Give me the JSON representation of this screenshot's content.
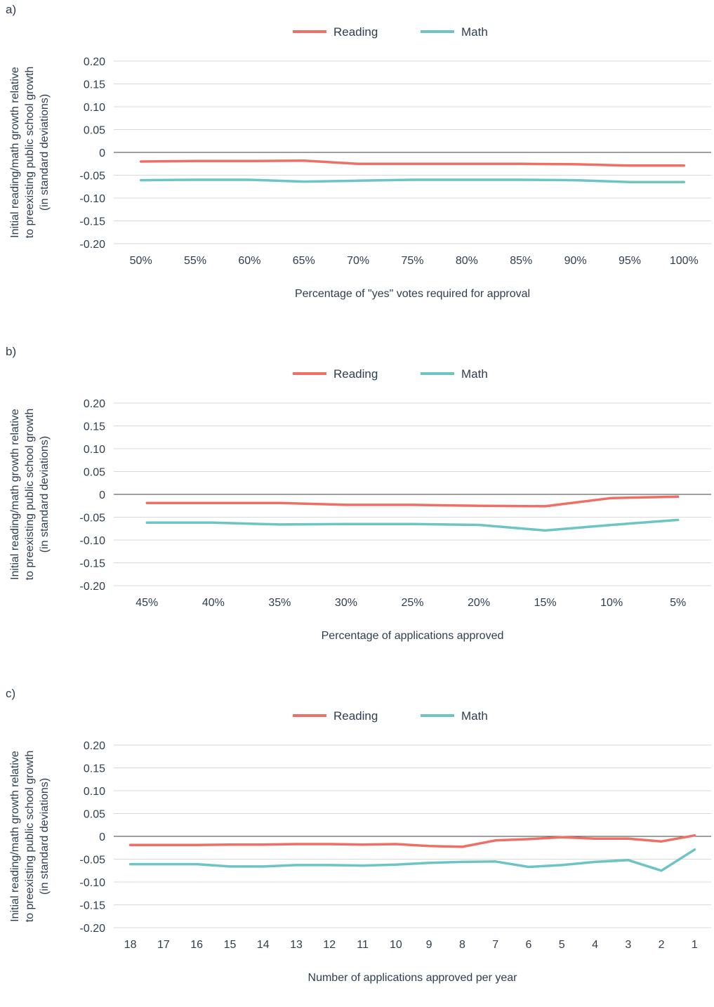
{
  "colors": {
    "reading": "#ef6f66",
    "math": "#6cc4c4",
    "grid": "#d9d9d9",
    "zero": "#404040",
    "text": "#2e3d50"
  },
  "ylabel_lines": [
    "Initial reading/math growth relative",
    "to preexisting public school growth",
    "(in standard deviations)"
  ],
  "yticks": [
    "0.20",
    "0.15",
    "0.10",
    "0.05",
    "0",
    "-0.05",
    "-0.10",
    "-0.15",
    "-0.20"
  ],
  "chart_data": [
    {
      "panel": "a)",
      "type": "line",
      "xlabel": "Percentage of \"yes\" votes required for approval",
      "categories": [
        "50%",
        "55%",
        "60%",
        "65%",
        "70%",
        "75%",
        "80%",
        "85%",
        "90%",
        "95%",
        "100%"
      ],
      "ylim": [
        -0.2,
        0.2
      ],
      "grid": true,
      "legend": "top-center",
      "series": [
        {
          "name": "Reading",
          "values": [
            -0.02,
            -0.019,
            -0.019,
            -0.018,
            -0.025,
            -0.025,
            -0.025,
            -0.025,
            -0.026,
            -0.029,
            -0.029
          ]
        },
        {
          "name": "Math",
          "values": [
            -0.061,
            -0.06,
            -0.06,
            -0.064,
            -0.062,
            -0.06,
            -0.06,
            -0.06,
            -0.061,
            -0.065,
            -0.065
          ]
        }
      ]
    },
    {
      "panel": "b)",
      "type": "line",
      "xlabel": "Percentage of applications approved",
      "categories": [
        "45%",
        "40%",
        "35%",
        "30%",
        "25%",
        "20%",
        "15%",
        "10%",
        "5%"
      ],
      "ylim": [
        -0.2,
        0.2
      ],
      "grid": true,
      "legend": "top-center",
      "series": [
        {
          "name": "Reading",
          "values": [
            -0.019,
            -0.019,
            -0.019,
            -0.023,
            -0.023,
            -0.025,
            -0.026,
            -0.008,
            -0.005
          ]
        },
        {
          "name": "Math",
          "values": [
            -0.062,
            -0.062,
            -0.066,
            -0.065,
            -0.065,
            -0.067,
            -0.079,
            -0.067,
            -0.056
          ]
        }
      ]
    },
    {
      "panel": "c)",
      "type": "line",
      "xlabel": "Number of applications approved per year",
      "categories": [
        "18",
        "17",
        "16",
        "15",
        "14",
        "13",
        "12",
        "11",
        "10",
        "9",
        "8",
        "7",
        "6",
        "5",
        "4",
        "3",
        "2",
        "1"
      ],
      "ylim": [
        -0.2,
        0.2
      ],
      "grid": true,
      "legend": "top-center",
      "series": [
        {
          "name": "Reading",
          "values": [
            -0.019,
            -0.019,
            -0.019,
            -0.018,
            -0.018,
            -0.017,
            -0.017,
            -0.018,
            -0.017,
            -0.021,
            -0.023,
            -0.009,
            -0.006,
            -0.002,
            -0.005,
            -0.005,
            -0.011,
            0.002
          ]
        },
        {
          "name": "Math",
          "values": [
            -0.061,
            -0.061,
            -0.061,
            -0.066,
            -0.066,
            -0.063,
            -0.063,
            -0.064,
            -0.062,
            -0.058,
            -0.056,
            -0.055,
            -0.067,
            -0.063,
            -0.056,
            -0.052,
            -0.075,
            -0.029
          ]
        }
      ]
    }
  ]
}
